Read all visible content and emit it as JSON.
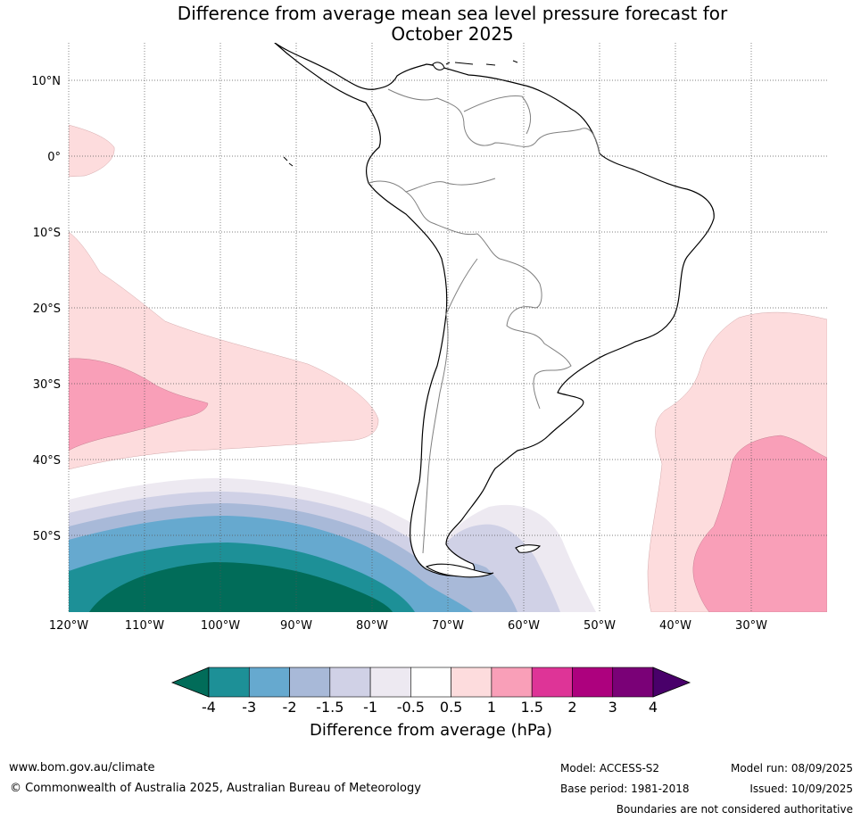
{
  "title_line1": "Difference from average mean sea level pressure forecast for",
  "title_line2": "October 2025",
  "map": {
    "lat_labels": [
      "10°N",
      "0°",
      "10°S",
      "20°S",
      "30°S",
      "40°S",
      "50°S"
    ],
    "lon_labels": [
      "120°W",
      "110°W",
      "100°W",
      "90°W",
      "80°W",
      "70°W",
      "60°W",
      "50°W",
      "40°W",
      "30°W"
    ],
    "region": "South America"
  },
  "colorbar": {
    "tick_labels": [
      "-4",
      "-3",
      "-2",
      "-1.5",
      "-1",
      "-0.5",
      "0.5",
      "1",
      "1.5",
      "2",
      "3",
      "4"
    ],
    "colors": [
      "#1d9097",
      "#66a9cf",
      "#a8b9d8",
      "#d0d1e6",
      "#ede9f1",
      "#ffffff",
      "#fddcdd",
      "#f99fb8",
      "#de3497",
      "#ad017e",
      "#7a0177"
    ],
    "under_color": "#016c59",
    "over_color": "#49006a",
    "label": "Difference from average (hPa)"
  },
  "footer": {
    "url": "www.bom.gov.au/climate",
    "copyright": "© Commonwealth of Australia 2025, Australian Bureau of Meteorology",
    "model": "Model: ACCESS-S2",
    "base_period": "Base period: 1981-2018",
    "model_run": "Model run: 08/09/2025",
    "issued": "Issued: 10/09/2025",
    "disclaimer": "Boundaries are not considered authoritative"
  }
}
